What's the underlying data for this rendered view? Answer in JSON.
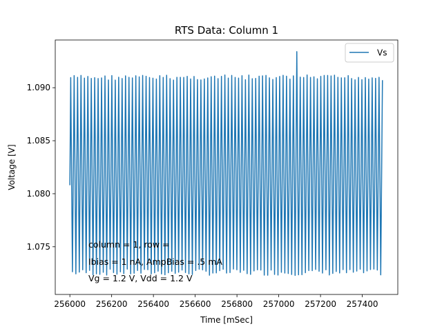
{
  "chart_data": {
    "type": "line",
    "title": "RTS Data: Column 1",
    "xlabel": "Time [mSec]",
    "ylabel": "Voltage [V]",
    "xlim": [
      255930,
      257570
    ],
    "ylim": [
      1.0705,
      1.0945
    ],
    "x_ticks": [
      256000,
      256200,
      256400,
      256600,
      256800,
      257000,
      257200,
      257400
    ],
    "y_ticks": [
      1.075,
      1.08,
      1.085,
      1.09
    ],
    "y_tick_labels": [
      "1.075",
      "1.080",
      "1.085",
      "1.090"
    ],
    "grid": false,
    "legend_position": "top-right",
    "series": [
      {
        "name": "Vs",
        "color": "#1f77b4",
        "x_start": 256000,
        "x_end": 257500,
        "period_ms": 16.4,
        "y_start": 1.0808,
        "y_high": 1.0912,
        "y_low": 1.0723,
        "spike": {
          "x": 257090,
          "y": 1.0934
        }
      }
    ],
    "annotations": [
      "column = 1, row = ",
      "Ibias = 1 nA, AmpBias = .5 mA",
      "Vg = 1.2 V, Vdd = 1.2 V"
    ]
  }
}
